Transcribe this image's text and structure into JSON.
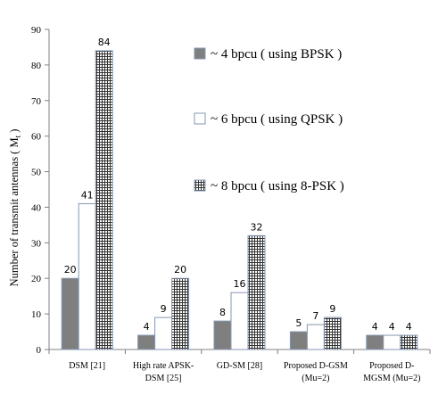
{
  "chart_data": {
    "type": "bar",
    "ylabel": "Number of  transmit antennas ( M",
    "ylabel_sub": "t",
    "ylabel_close": " )",
    "ylim": [
      0,
      90
    ],
    "yticks": [
      0,
      10,
      20,
      30,
      40,
      50,
      60,
      70,
      80,
      90
    ],
    "grid": false,
    "legend_position": "top-right",
    "categories": [
      [
        "DSM [21]"
      ],
      [
        "High rate APSK-",
        "DSM [25]"
      ],
      [
        "GD-SM [28]"
      ],
      [
        "Proposed D-GSM",
        "(Mu=2)"
      ],
      [
        "Proposed D-",
        "MGSM (Mu=2)"
      ]
    ],
    "series": [
      {
        "name": "~ 4 bpcu ( using BPSK )",
        "values": [
          20,
          4,
          8,
          5,
          4
        ],
        "fill": "#7f7f7f",
        "pattern": "solid"
      },
      {
        "name": "~ 6 bpcu ( using QPSK )",
        "values": [
          41,
          9,
          16,
          7,
          4
        ],
        "fill": "#ffffff",
        "pattern": "empty"
      },
      {
        "name": "~ 8 bpcu ( using 8-PSK )",
        "values": [
          84,
          20,
          32,
          9,
          4
        ],
        "fill": "#ffffff",
        "pattern": "grid"
      }
    ],
    "colors": {
      "axis": "#808080",
      "bar_stroke": "#8497b0",
      "solid_fill": "#7f7f7f"
    }
  }
}
